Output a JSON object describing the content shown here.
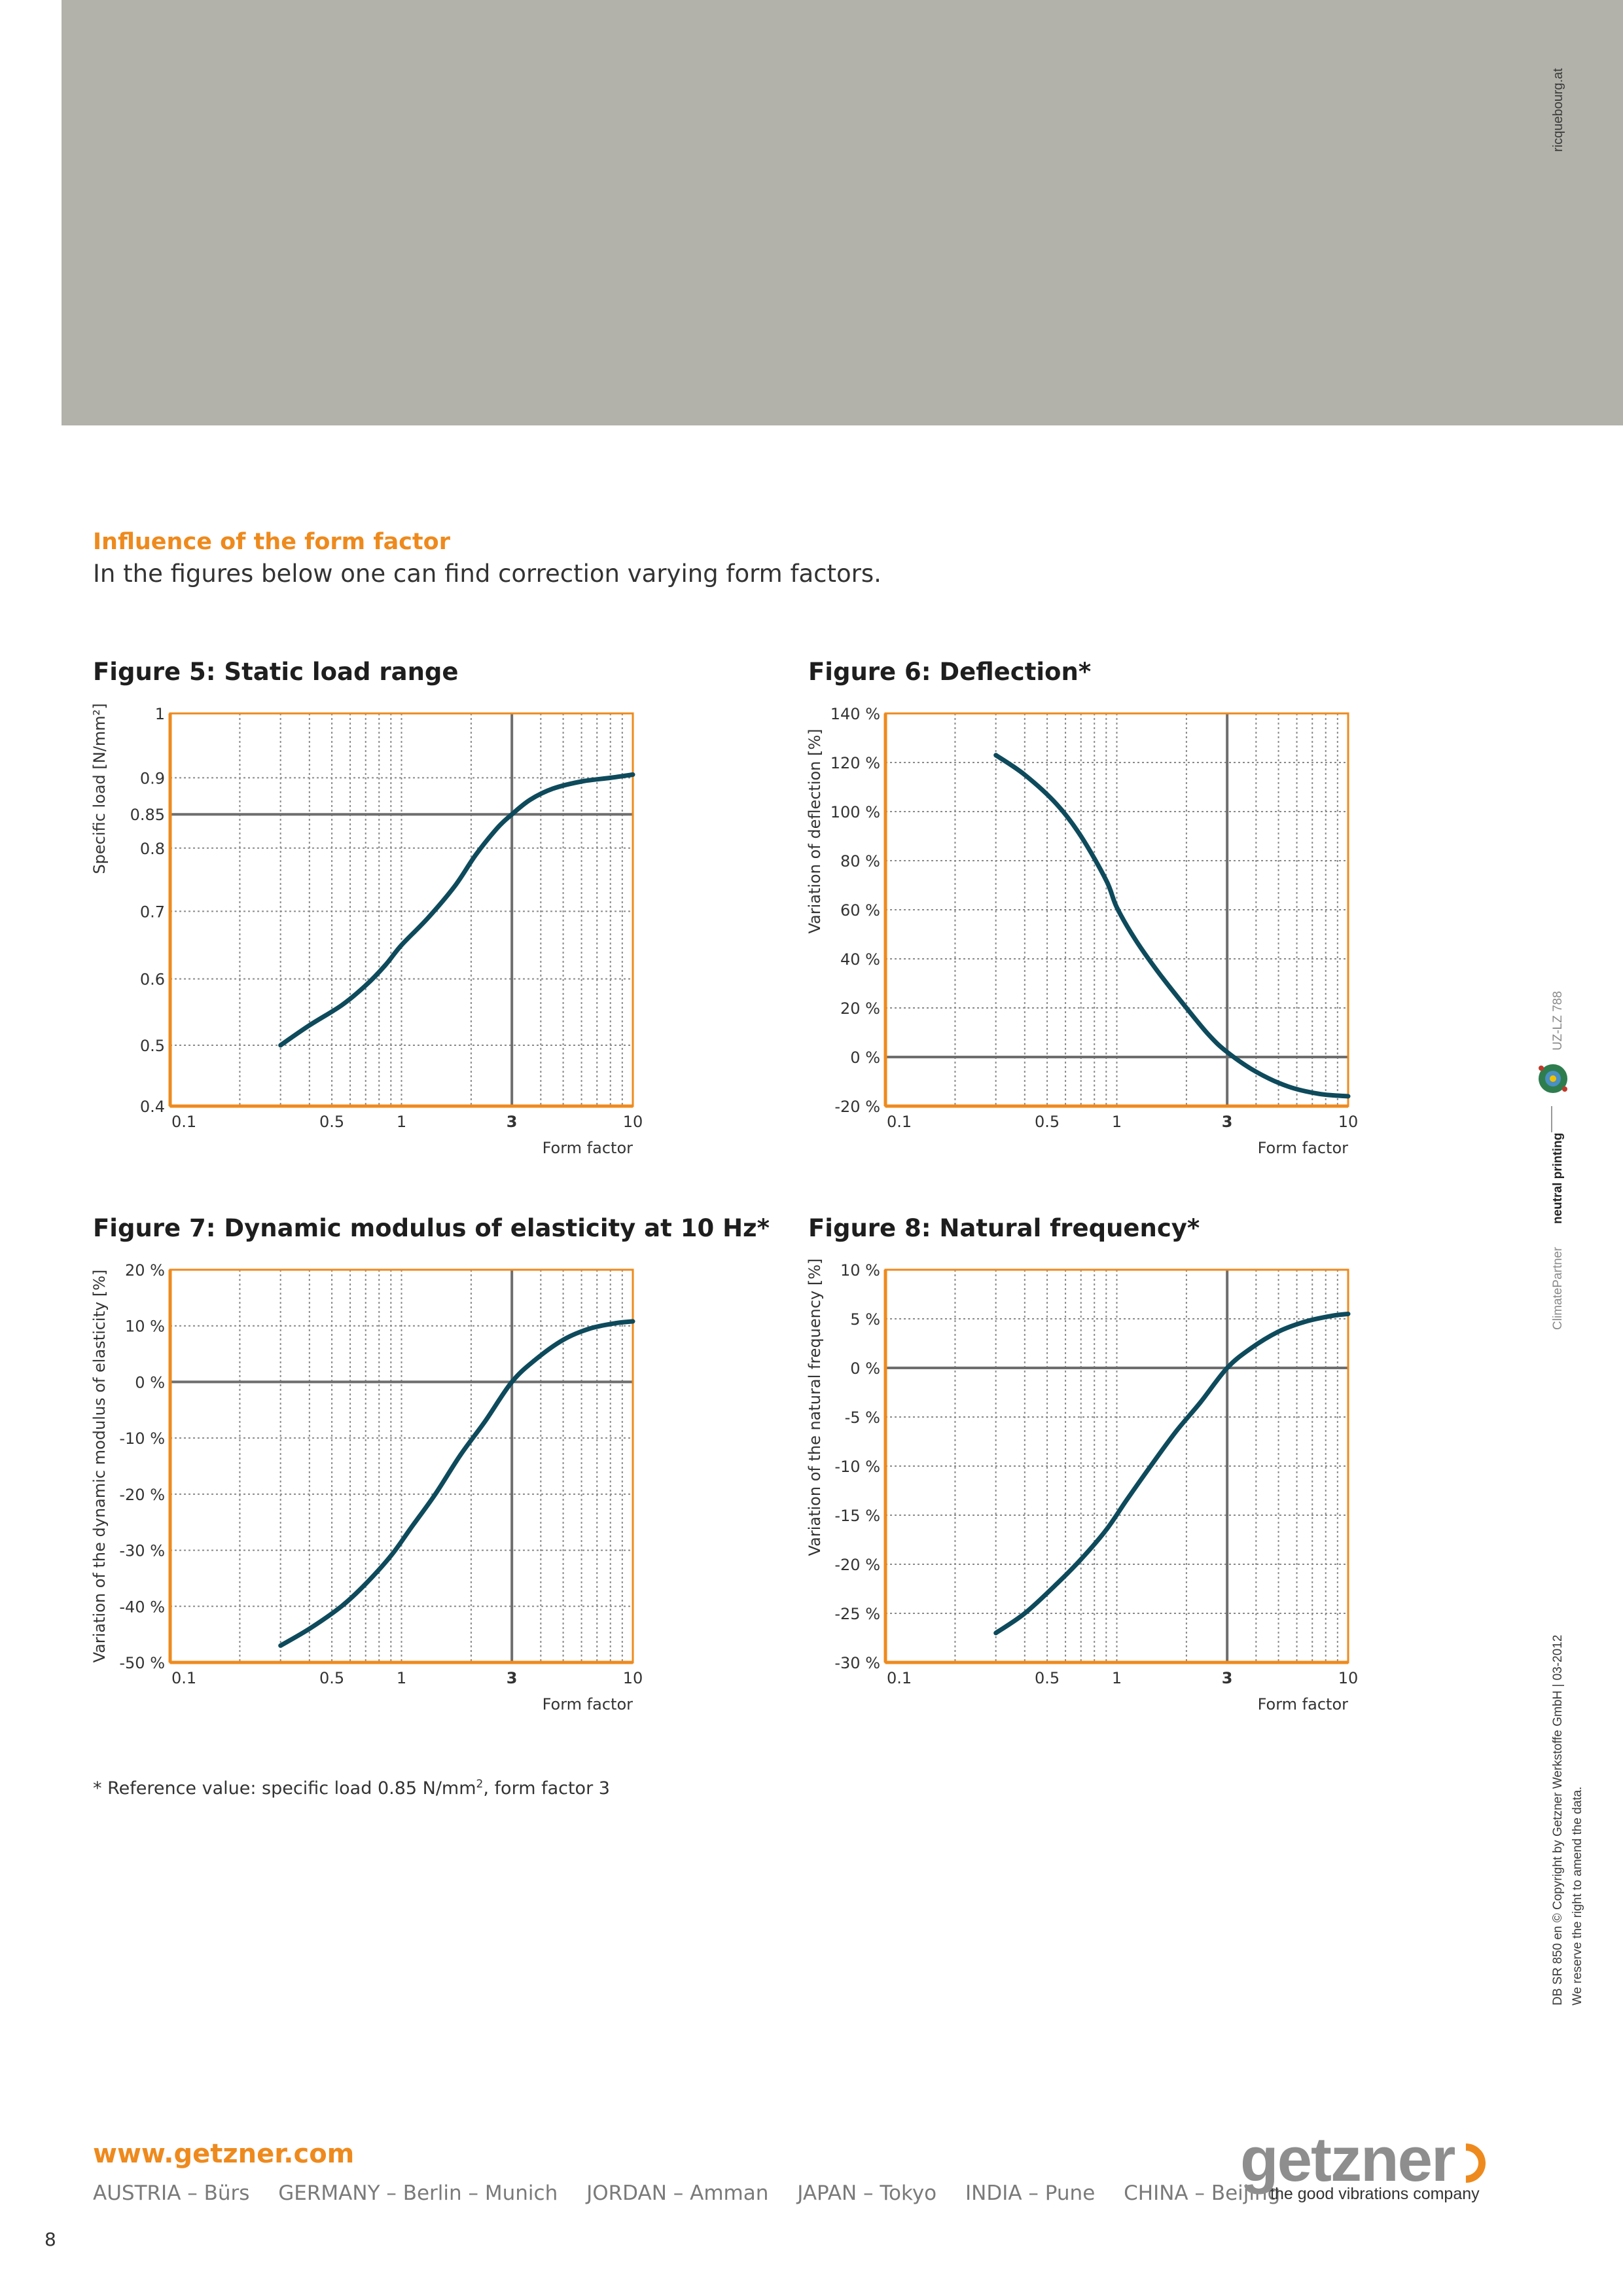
{
  "header": {
    "side_credit": "ricquebourg.at"
  },
  "section": {
    "title": "Influence of the form factor",
    "intro": "In the figures below one can find correction varying form factors."
  },
  "figures": [
    {
      "title": "Figure 5: Static load range"
    },
    {
      "title": "Figure 6: Deflection*"
    },
    {
      "title": "Figure 7: Dynamic modulus of elasticity at 10 Hz*"
    },
    {
      "title": "Figure 8: Natural frequency*"
    }
  ],
  "chart_data": [
    {
      "type": "line",
      "title": "Figure 5: Static load range",
      "xlabel": "Form factor",
      "ylabel": "Specific load [N/mm²]",
      "xscale": "log",
      "xlim": [
        0.1,
        10
      ],
      "x_ticks": [
        "0.1",
        "0.5",
        "1",
        "3",
        "10"
      ],
      "y_ticks": [
        "0.4",
        "0.5",
        "0.6",
        "0.7",
        "0.8",
        "0.85",
        "0.9",
        "1"
      ],
      "ylim": [
        0.4,
        1
      ],
      "y_ticks_warped": true,
      "reference": {
        "x": 3,
        "y": 0.85
      },
      "grid": true,
      "series": [
        {
          "x": [
            0.3,
            0.4,
            0.55,
            0.7,
            0.85,
            1.0,
            1.3,
            1.7,
            2.1,
            2.6,
            3.0,
            3.6,
            4.5,
            6,
            8,
            10
          ],
          "y": [
            0.5,
            0.53,
            0.56,
            0.59,
            0.62,
            0.65,
            0.69,
            0.74,
            0.79,
            0.83,
            0.85,
            0.87,
            0.885,
            0.895,
            0.9,
            0.905
          ]
        }
      ]
    },
    {
      "type": "line",
      "title": "Figure 6: Deflection*",
      "xlabel": "Form factor",
      "ylabel": "Variation of deflection [%]",
      "xscale": "log",
      "xlim": [
        0.1,
        10
      ],
      "x_ticks": [
        "0.1",
        "0.5",
        "1",
        "3",
        "10"
      ],
      "y_ticks": [
        "-20 %",
        "0 %",
        "20 %",
        "40 %",
        "60 %",
        "80 %",
        "100 %",
        "120 %",
        "140 %"
      ],
      "ylim": [
        -20,
        140
      ],
      "reference": {
        "x": 3,
        "y": 0
      },
      "grid": true,
      "series": [
        {
          "x": [
            0.3,
            0.4,
            0.55,
            0.7,
            0.9,
            1.0,
            1.2,
            1.5,
            2.0,
            2.5,
            3.0,
            4.0,
            5.5,
            7.5,
            10
          ],
          "y": [
            123,
            115,
            103,
            90,
            72,
            61,
            48,
            35,
            20,
            9,
            2,
            -6,
            -12,
            -15,
            -16
          ]
        }
      ]
    },
    {
      "type": "line",
      "title": "Figure 7: Dynamic modulus of elasticity at 10 Hz*",
      "xlabel": "Form factor",
      "ylabel": "Variation of the dynamic modulus of elasticity [%]",
      "xscale": "log",
      "xlim": [
        0.1,
        10
      ],
      "x_ticks": [
        "0.1",
        "0.5",
        "1",
        "3",
        "10"
      ],
      "y_ticks": [
        "-50 %",
        "-40 %",
        "-30 %",
        "-20 %",
        "-10 %",
        "0 %",
        "10 %",
        "20 %"
      ],
      "ylim": [
        -50,
        20
      ],
      "reference": {
        "x": 3,
        "y": 0
      },
      "grid": true,
      "series": [
        {
          "x": [
            0.3,
            0.4,
            0.55,
            0.7,
            0.9,
            1.1,
            1.4,
            1.8,
            2.3,
            3.0,
            3.8,
            5.0,
            6.5,
            8.5,
            10
          ],
          "y": [
            -47,
            -44,
            -40,
            -36,
            -31,
            -26,
            -20,
            -13,
            -7,
            0,
            4,
            7.5,
            9.5,
            10.5,
            10.8
          ]
        }
      ]
    },
    {
      "type": "line",
      "title": "Figure 8: Natural frequency*",
      "xlabel": "Form factor",
      "ylabel": "Variation of the natural frequency [%]",
      "xscale": "log",
      "xlim": [
        0.1,
        10
      ],
      "x_ticks": [
        "0.1",
        "0.5",
        "1",
        "3",
        "10"
      ],
      "y_ticks": [
        "-30 %",
        "-25 %",
        "-20 %",
        "-15 %",
        "-10 %",
        "-5 %",
        "0 %",
        "5 %",
        "10 %"
      ],
      "ylim": [
        -30,
        10
      ],
      "reference": {
        "x": 3,
        "y": 0
      },
      "grid": true,
      "series": [
        {
          "x": [
            0.3,
            0.4,
            0.55,
            0.7,
            0.9,
            1.1,
            1.4,
            1.8,
            2.3,
            3.0,
            3.8,
            5.0,
            6.5,
            8.5,
            10
          ],
          "y": [
            -27,
            -25,
            -22,
            -19.5,
            -16.5,
            -13.5,
            -10,
            -6.5,
            -3.5,
            0,
            2,
            3.7,
            4.7,
            5.3,
            5.5
          ]
        }
      ]
    }
  ],
  "footnote": {
    "text": "* Reference value: specific load 0.85 N/mm",
    "sup": "2",
    "rest": ", form factor 3"
  },
  "side": {
    "partner": "ClimatePartner",
    "neutral": "neutral printing",
    "uz": "UZ-LZ 788",
    "copyright": "DB SR 850 en © Copyright by Getzner Werkstoffe GmbH | 03-2012",
    "reserve": "We reserve the right to amend the data."
  },
  "footer": {
    "website": "www.getzner.com",
    "locations": [
      "AUSTRIA – Bürs",
      "GERMANY – Berlin – Munich",
      "JORDAN – Amman",
      "JAPAN – Tokyo",
      "INDIA – Pune",
      "CHINA – Beijing"
    ],
    "logo_word": "getzner",
    "logo_tagline": "the good vibrations company",
    "page_number": "8"
  },
  "colors": {
    "accent": "#ee8a1d",
    "curve": "#0d4a5c",
    "header_band": "#b2b2aa"
  }
}
